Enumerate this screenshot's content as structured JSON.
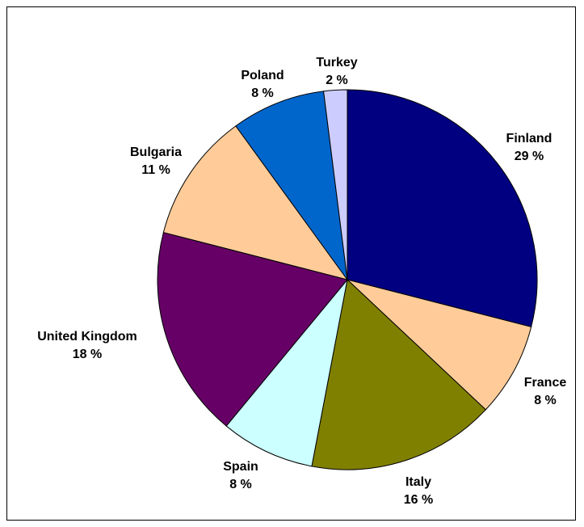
{
  "chart_data": {
    "type": "pie",
    "title": "",
    "slices": [
      {
        "label": "Finland",
        "value_text": "29 %",
        "value": 29,
        "color": "#000080"
      },
      {
        "label": "France",
        "value_text": "8 %",
        "value": 8,
        "color": "#FFCC99"
      },
      {
        "label": "Italy",
        "value_text": "16 %",
        "value": 16,
        "color": "#808000"
      },
      {
        "label": "Spain",
        "value_text": "8 %",
        "value": 8,
        "color": "#CCFFFF"
      },
      {
        "label": "United Kingdom",
        "value_text": "18 %",
        "value": 18,
        "color": "#660066"
      },
      {
        "label": "Bulgaria",
        "value_text": "11 %",
        "value": 11,
        "color": "#FFCC99"
      },
      {
        "label": "Poland",
        "value_text": "8 %",
        "value": 8,
        "color": "#0066CC"
      },
      {
        "label": "Turkey",
        "value_text": "2 %",
        "value": 2,
        "color": "#CCCCFF"
      }
    ],
    "legend": "none",
    "labels": "outside"
  }
}
